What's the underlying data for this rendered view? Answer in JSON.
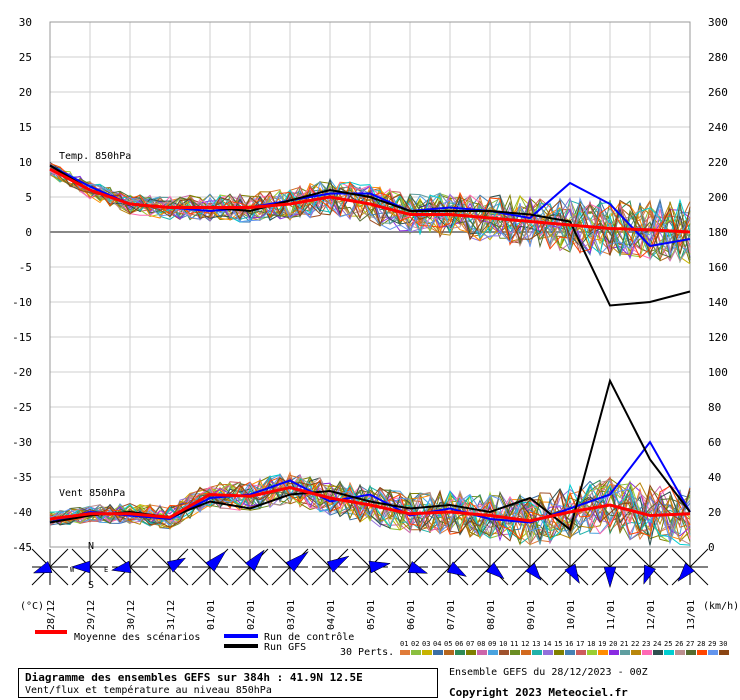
{
  "chart_data": {
    "type": "line",
    "x_labels": [
      "28/12",
      "29/12",
      "30/12",
      "31/12",
      "01/01",
      "02/01",
      "03/01",
      "04/01",
      "05/01",
      "06/01",
      "07/01",
      "08/01",
      "09/01",
      "10/01",
      "11/01",
      "12/01",
      "13/01"
    ],
    "left_axis": {
      "min": -45,
      "max": 30,
      "ticks": [
        30,
        25,
        20,
        15,
        10,
        5,
        0,
        -5,
        -10,
        -15,
        -20,
        -25,
        -30,
        -35,
        -40,
        -45
      ],
      "unit": "(°C)"
    },
    "right_axis": {
      "min": 0,
      "max": 300,
      "ticks": [
        300,
        280,
        260,
        240,
        220,
        200,
        180,
        160,
        140,
        120,
        100,
        80,
        60,
        40,
        20,
        0
      ],
      "unit": "(km/h)"
    },
    "panel_labels": {
      "temp": "Temp. 850hPa",
      "wind": "Vent 850hPa"
    },
    "temp_mean": [
      9,
      6,
      4,
      3.5,
      3.5,
      3.5,
      4,
      5,
      4,
      2.5,
      2.5,
      2,
      1.5,
      1,
      0.5,
      0.3,
      0
    ],
    "temp_gfs": [
      9.5,
      6,
      4,
      3.5,
      3.5,
      3,
      4.5,
      6,
      5,
      3,
      3,
      3,
      2.5,
      1.5,
      -10.5,
      -10,
      -8.5
    ],
    "temp_control": [
      9.5,
      6.5,
      4,
      3.5,
      3,
      3.5,
      4.5,
      5.5,
      5.5,
      3,
      3.5,
      3,
      2,
      7,
      4,
      -2,
      -1
    ],
    "wind_mean": [
      16,
      19,
      19,
      17,
      30,
      29,
      34,
      28,
      24,
      19,
      20,
      18,
      15,
      20,
      24,
      18,
      19
    ],
    "wind_gfs": [
      14,
      18,
      20,
      17,
      26,
      22,
      30,
      32,
      26,
      22,
      24,
      20,
      28,
      10,
      95,
      50,
      20
    ],
    "wind_control": [
      14,
      20,
      18,
      16,
      28,
      30,
      38,
      26,
      30,
      18,
      22,
      16,
      14,
      22,
      30,
      60,
      20
    ],
    "wind_directions_deg": [
      250,
      270,
      260,
      60,
      45,
      40,
      50,
      60,
      80,
      110,
      120,
      130,
      140,
      150,
      180,
      200,
      220
    ],
    "legend": {
      "mean": "Moyenne des scénarios",
      "control": "Run de contrôle",
      "gfs": "Run GFS",
      "perts": "30 Perts.",
      "pert_numbers": [
        "01",
        "02",
        "03",
        "04",
        "05",
        "06",
        "07",
        "08",
        "09",
        "10",
        "11",
        "12",
        "13",
        "14",
        "15",
        "16",
        "17",
        "18",
        "19",
        "20",
        "21",
        "22",
        "23",
        "24",
        "25",
        "26",
        "27",
        "28",
        "29",
        "30"
      ]
    },
    "compass": {
      "n": "N",
      "s": "S",
      "w": "W",
      "e": "E"
    },
    "colors": {
      "mean": "#ff0000",
      "control": "#0000ff",
      "gfs": "#000000",
      "perts": [
        "#e07b39",
        "#8bbf3f",
        "#c8b400",
        "#3a6ea5",
        "#b5651d",
        "#2e8b57",
        "#7f7f00",
        "#cc66aa",
        "#4aa3df",
        "#a0522d",
        "#6b8e23",
        "#d2691e",
        "#20b2aa",
        "#9370db",
        "#808000",
        "#4682b4",
        "#cd5c5c",
        "#9acd32",
        "#ff8c00",
        "#8a2be2",
        "#5f9ea0",
        "#b8860b",
        "#ff69b4",
        "#2f4f4f",
        "#00ced1",
        "#bc8f8f",
        "#556b2f",
        "#ff4500",
        "#6495ed",
        "#8b4513"
      ]
    }
  },
  "footer": {
    "title": "Diagramme des ensembles GEFS sur 384h : 41.9N 12.5E",
    "subtitle": "Vent/flux et température au niveau 850hPa",
    "ensemble_run": "Ensemble GEFS du 28/12/2023 - 00Z",
    "copyright": "Copyright 2023 Meteociel.fr"
  }
}
